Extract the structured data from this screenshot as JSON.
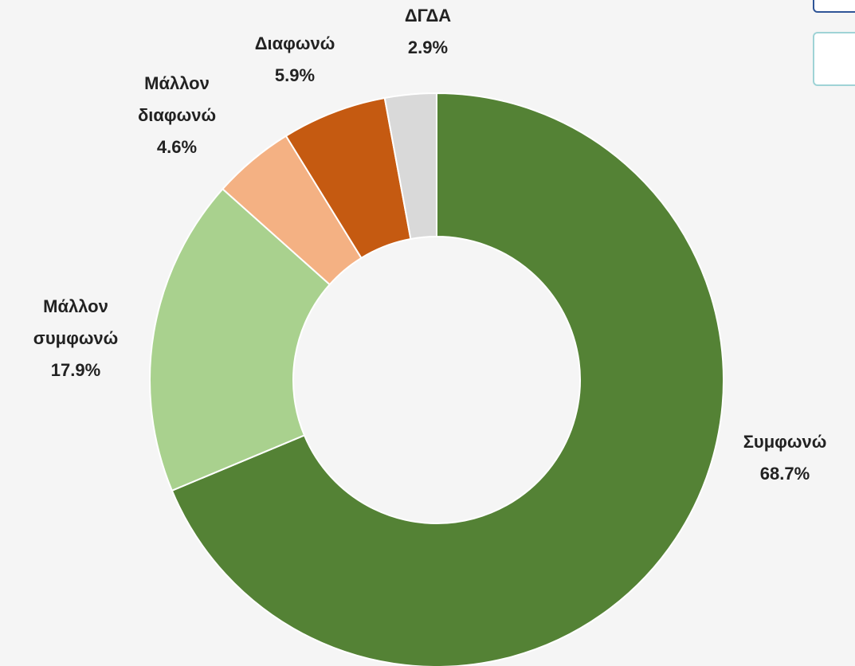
{
  "chart_data": {
    "type": "donut",
    "categories": [
      "Συμφωνώ",
      "Μάλλον συμφωνώ",
      "Μάλλον διαφωνώ",
      "Διαφωνώ",
      "ΔΓΔΑ"
    ],
    "values": [
      68.7,
      17.9,
      4.6,
      5.9,
      2.9
    ],
    "value_labels": [
      "68.7%",
      "17.9%",
      "4.6%",
      "5.9%",
      "2.9%"
    ],
    "colors": [
      "#548235",
      "#a9d18e",
      "#f4b183",
      "#c55a11",
      "#d9d9d9"
    ]
  }
}
